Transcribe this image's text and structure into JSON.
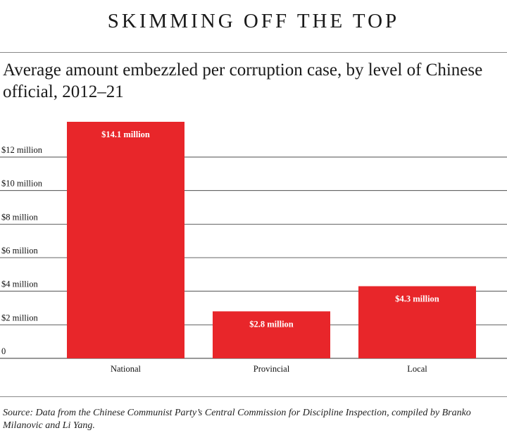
{
  "headline": "Skimming off the top",
  "subtitle": "Average amount embezzled per corruption case, by level of Chinese official, 2012–21",
  "source": "Source: Data from the Chinese Communist Party’s Central Commission for Discipline Inspection, compiled by Branko Milanovic and Li Yang.",
  "colors": {
    "bar": "#e8262a",
    "grid": "#333333",
    "text": "#111111",
    "bar_label": "#ffffff"
  },
  "chart_data": {
    "type": "bar",
    "title": "Average amount embezzled per corruption case, by level of Chinese official, 2012–21",
    "categories": [
      "National",
      "Provincial",
      "Local"
    ],
    "values": [
      14.1,
      2.8,
      4.3
    ],
    "value_labels": [
      "$14.1 million",
      "$2.8 million",
      "$4.3 million"
    ],
    "unit": "million USD",
    "ylim": [
      0,
      14.1
    ],
    "yticks": [
      0,
      2,
      4,
      6,
      8,
      10,
      12
    ],
    "ytick_labels": [
      "0",
      "$2 million",
      "$4 million",
      "$6 million",
      "$8 million",
      "$10 million",
      "$12 million"
    ],
    "xlabel": "",
    "ylabel": "",
    "grid": true,
    "legend": "none"
  }
}
